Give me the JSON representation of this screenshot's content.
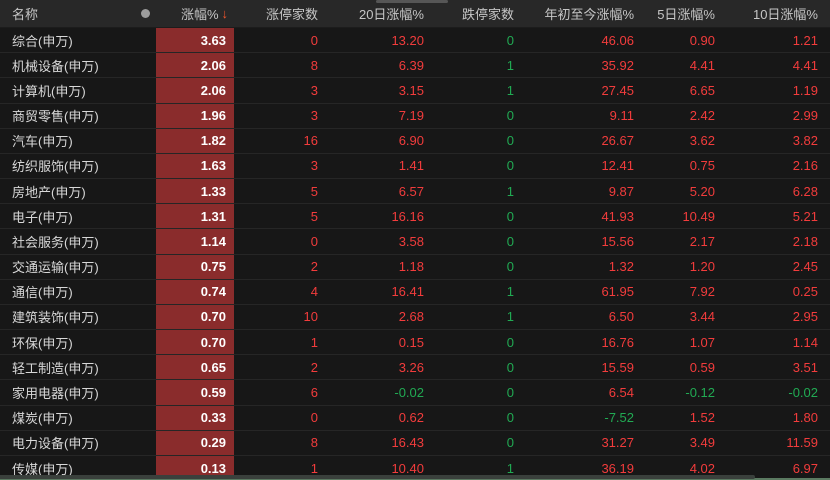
{
  "table": {
    "columns": [
      {
        "label": "名称"
      },
      {
        "label": "●"
      },
      {
        "label": "涨幅%"
      },
      {
        "label": "涨停家数"
      },
      {
        "label": "20日涨幅%"
      },
      {
        "label": "跌停家数"
      },
      {
        "label": "年初至今涨幅%"
      },
      {
        "label": "5日涨幅%"
      },
      {
        "label": "10日涨幅%"
      }
    ],
    "sort": {
      "column": "涨幅%",
      "direction": "desc",
      "arrow": "↓"
    },
    "rows": [
      {
        "name": "综合(申万)",
        "chg": "3.63",
        "limit_up": "0",
        "chg20": "13.20",
        "limit_down": "0",
        "ytd": "46.06",
        "chg5": "0.90",
        "chg10": "1.21"
      },
      {
        "name": "机械设备(申万)",
        "chg": "2.06",
        "limit_up": "8",
        "chg20": "6.39",
        "limit_down": "1",
        "ytd": "35.92",
        "chg5": "4.41",
        "chg10": "4.41"
      },
      {
        "name": "计算机(申万)",
        "chg": "2.06",
        "limit_up": "3",
        "chg20": "3.15",
        "limit_down": "1",
        "ytd": "27.45",
        "chg5": "6.65",
        "chg10": "1.19"
      },
      {
        "name": "商贸零售(申万)",
        "chg": "1.96",
        "limit_up": "3",
        "chg20": "7.19",
        "limit_down": "0",
        "ytd": "9.11",
        "chg5": "2.42",
        "chg10": "2.99"
      },
      {
        "name": "汽车(申万)",
        "chg": "1.82",
        "limit_up": "16",
        "chg20": "6.90",
        "limit_down": "0",
        "ytd": "26.67",
        "chg5": "3.62",
        "chg10": "3.82"
      },
      {
        "name": "纺织服饰(申万)",
        "chg": "1.63",
        "limit_up": "3",
        "chg20": "1.41",
        "limit_down": "0",
        "ytd": "12.41",
        "chg5": "0.75",
        "chg10": "2.16"
      },
      {
        "name": "房地产(申万)",
        "chg": "1.33",
        "limit_up": "5",
        "chg20": "6.57",
        "limit_down": "1",
        "ytd": "9.87",
        "chg5": "5.20",
        "chg10": "6.28"
      },
      {
        "name": "电子(申万)",
        "chg": "1.31",
        "limit_up": "5",
        "chg20": "16.16",
        "limit_down": "0",
        "ytd": "41.93",
        "chg5": "10.49",
        "chg10": "5.21"
      },
      {
        "name": "社会服务(申万)",
        "chg": "1.14",
        "limit_up": "0",
        "chg20": "3.58",
        "limit_down": "0",
        "ytd": "15.56",
        "chg5": "2.17",
        "chg10": "2.18"
      },
      {
        "name": "交通运输(申万)",
        "chg": "0.75",
        "limit_up": "2",
        "chg20": "1.18",
        "limit_down": "0",
        "ytd": "1.32",
        "chg5": "1.20",
        "chg10": "2.45"
      },
      {
        "name": "通信(申万)",
        "chg": "0.74",
        "limit_up": "4",
        "chg20": "16.41",
        "limit_down": "1",
        "ytd": "61.95",
        "chg5": "7.92",
        "chg10": "0.25"
      },
      {
        "name": "建筑装饰(申万)",
        "chg": "0.70",
        "limit_up": "10",
        "chg20": "2.68",
        "limit_down": "1",
        "ytd": "6.50",
        "chg5": "3.44",
        "chg10": "2.95"
      },
      {
        "name": "环保(申万)",
        "chg": "0.70",
        "limit_up": "1",
        "chg20": "0.15",
        "limit_down": "0",
        "ytd": "16.76",
        "chg5": "1.07",
        "chg10": "1.14"
      },
      {
        "name": "轻工制造(申万)",
        "chg": "0.65",
        "limit_up": "2",
        "chg20": "3.26",
        "limit_down": "0",
        "ytd": "15.59",
        "chg5": "0.59",
        "chg10": "3.51"
      },
      {
        "name": "家用电器(申万)",
        "chg": "0.59",
        "limit_up": "6",
        "chg20": "-0.02",
        "limit_down": "0",
        "ytd": "6.54",
        "chg5": "-0.12",
        "chg10": "-0.02"
      },
      {
        "name": "煤炭(申万)",
        "chg": "0.33",
        "limit_up": "0",
        "chg20": "0.62",
        "limit_down": "0",
        "ytd": "-7.52",
        "chg5": "1.52",
        "chg10": "1.80"
      },
      {
        "name": "电力设备(申万)",
        "chg": "0.29",
        "limit_up": "8",
        "chg20": "16.43",
        "limit_down": "0",
        "ytd": "31.27",
        "chg5": "3.49",
        "chg10": "11.59"
      },
      {
        "name": "传媒(申万)",
        "chg": "0.13",
        "limit_up": "1",
        "chg20": "10.40",
        "limit_down": "1",
        "ytd": "36.19",
        "chg5": "4.02",
        "chg10": "6.97"
      }
    ]
  },
  "colors": {
    "up_text": "#f23c3c",
    "down_text": "#21aa53",
    "highlight_cell_bg": "#8a2c2c",
    "header_bg": "#282828",
    "body_bg": "#171717",
    "sort_arrow": "#f4552b"
  }
}
